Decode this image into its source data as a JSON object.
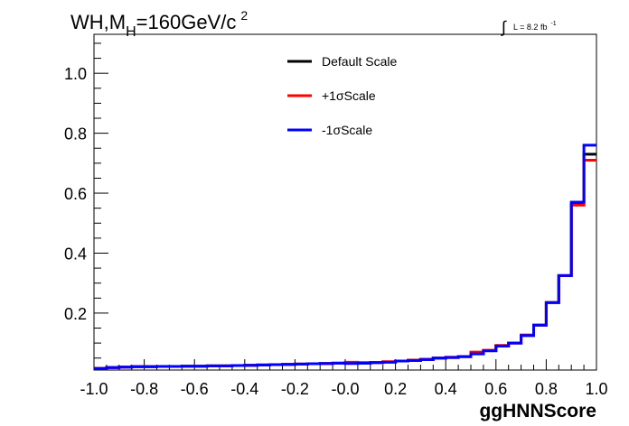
{
  "chart_data": {
    "type": "line",
    "title_main": "WH,M",
    "title_sub": "H",
    "title_rest": "=160GeV/c",
    "title_sup": "2",
    "lumi_symbol": "∫",
    "lumi_text": "L = 8.2 fb",
    "lumi_sup": "-1",
    "xlabel": "ggHNNScore",
    "ylabel": "",
    "xlim": [
      -1.0,
      1.0
    ],
    "ylim": [
      0.01,
      1.13
    ],
    "x_ticks": [
      "-1.0",
      "-0.8",
      "-0.6",
      "-0.4",
      "-0.2",
      "-0.0",
      "0.2",
      "0.4",
      "0.6",
      "0.8",
      "1.0"
    ],
    "y_ticks": [
      "0.2",
      "0.4",
      "0.6",
      "0.8",
      "1.0"
    ],
    "legend_position": "top-center",
    "grid": false,
    "bin_edges": [
      -1.0,
      -0.95,
      -0.9,
      -0.85,
      -0.8,
      -0.75,
      -0.7,
      -0.65,
      -0.6,
      -0.55,
      -0.5,
      -0.45,
      -0.4,
      -0.35,
      -0.3,
      -0.25,
      -0.2,
      -0.15,
      -0.1,
      -0.05,
      0.0,
      0.05,
      0.1,
      0.15,
      0.2,
      0.25,
      0.3,
      0.35,
      0.4,
      0.45,
      0.5,
      0.55,
      0.6,
      0.65,
      0.7,
      0.75,
      0.8,
      0.85,
      0.9,
      0.95,
      1.0
    ],
    "series": [
      {
        "name": "Default Scale",
        "color": "#000000",
        "values": [
          0.015,
          0.018,
          0.02,
          0.021,
          0.021,
          0.022,
          0.022,
          0.023,
          0.023,
          0.024,
          0.024,
          0.025,
          0.026,
          0.027,
          0.028,
          0.029,
          0.03,
          0.031,
          0.032,
          0.033,
          0.034,
          0.033,
          0.035,
          0.037,
          0.04,
          0.042,
          0.045,
          0.05,
          0.052,
          0.055,
          0.065,
          0.075,
          0.09,
          0.1,
          0.125,
          0.16,
          0.235,
          0.325,
          0.565,
          0.73
        ]
      },
      {
        "name": "+1σScale",
        "color": "#ff0000",
        "values": [
          0.015,
          0.018,
          0.02,
          0.021,
          0.021,
          0.022,
          0.022,
          0.023,
          0.023,
          0.024,
          0.024,
          0.025,
          0.026,
          0.027,
          0.028,
          0.029,
          0.03,
          0.031,
          0.032,
          0.033,
          0.036,
          0.035,
          0.035,
          0.038,
          0.04,
          0.043,
          0.046,
          0.05,
          0.053,
          0.055,
          0.07,
          0.076,
          0.092,
          0.1,
          0.127,
          0.16,
          0.235,
          0.325,
          0.56,
          0.71
        ]
      },
      {
        "name": "-1σScale",
        "color": "#0000ff",
        "values": [
          0.015,
          0.018,
          0.02,
          0.021,
          0.021,
          0.022,
          0.022,
          0.023,
          0.023,
          0.024,
          0.024,
          0.025,
          0.026,
          0.027,
          0.028,
          0.029,
          0.03,
          0.031,
          0.032,
          0.033,
          0.032,
          0.033,
          0.035,
          0.036,
          0.04,
          0.042,
          0.045,
          0.05,
          0.052,
          0.055,
          0.064,
          0.074,
          0.09,
          0.1,
          0.125,
          0.16,
          0.235,
          0.325,
          0.57,
          0.76
        ]
      }
    ]
  }
}
